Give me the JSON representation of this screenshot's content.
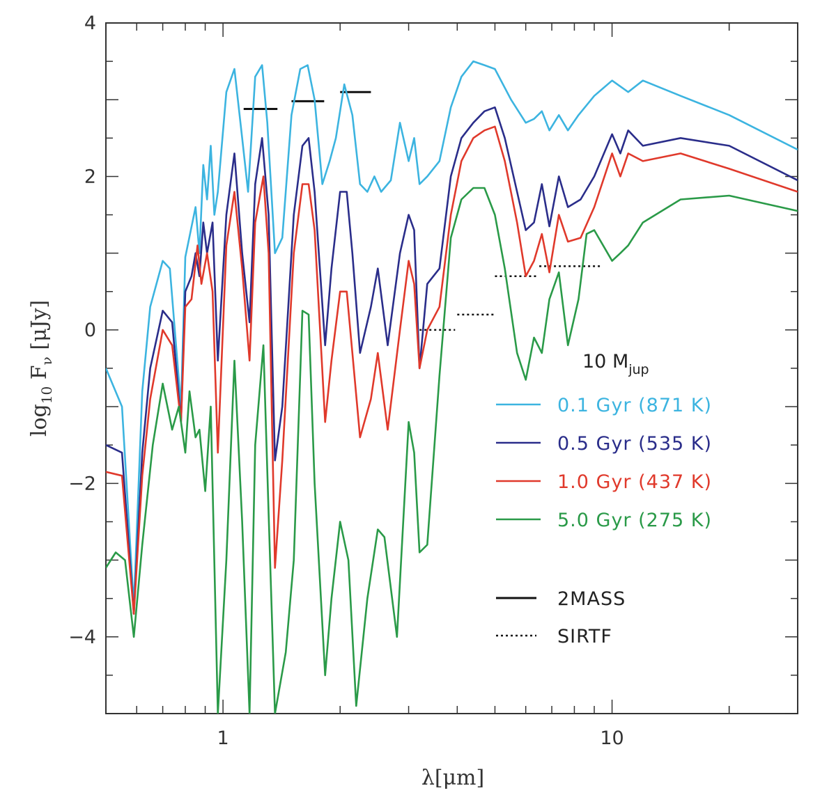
{
  "chart_data": {
    "type": "line",
    "xscale": "log",
    "xlim": [
      0.5,
      30
    ],
    "ylim": [
      -5,
      4
    ],
    "xlabel": "λ[μm]",
    "ylabel_main": "log",
    "ylabel_sub": "10",
    "ylabel_tail": " F",
    "ylabel_nu": "ν",
    "ylabel_unit": " [μJy]",
    "x_ticks": [
      {
        "value": 1,
        "label": "1"
      },
      {
        "value": 10,
        "label": "10"
      }
    ],
    "y_ticks": [
      {
        "value": -4,
        "label": "−4"
      },
      {
        "value": -2,
        "label": "−2"
      },
      {
        "value": 0,
        "label": "0"
      },
      {
        "value": 2,
        "label": "2"
      },
      {
        "value": 4,
        "label": "4"
      }
    ],
    "legend_title": "10 M",
    "legend_title_sub": "jup",
    "series": [
      {
        "name": "0.1 Gyr (871 K)",
        "color": "#3cb4e0",
        "points": [
          [
            0.5,
            -0.5
          ],
          [
            0.55,
            -1.0
          ],
          [
            0.59,
            -3.6
          ],
          [
            0.62,
            -0.8
          ],
          [
            0.65,
            0.3
          ],
          [
            0.7,
            0.9
          ],
          [
            0.73,
            0.8
          ],
          [
            0.78,
            -1.0
          ],
          [
            0.8,
            0.95
          ],
          [
            0.85,
            1.6
          ],
          [
            0.87,
            1.0
          ],
          [
            0.89,
            2.15
          ],
          [
            0.91,
            1.7
          ],
          [
            0.93,
            2.4
          ],
          [
            0.95,
            1.5
          ],
          [
            0.97,
            1.8
          ],
          [
            1.02,
            3.1
          ],
          [
            1.07,
            3.4
          ],
          [
            1.12,
            2.5
          ],
          [
            1.16,
            1.8
          ],
          [
            1.21,
            3.3
          ],
          [
            1.26,
            3.45
          ],
          [
            1.3,
            2.7
          ],
          [
            1.36,
            1.0
          ],
          [
            1.42,
            1.2
          ],
          [
            1.5,
            2.8
          ],
          [
            1.58,
            3.4
          ],
          [
            1.65,
            3.45
          ],
          [
            1.72,
            3.0
          ],
          [
            1.8,
            1.9
          ],
          [
            1.88,
            2.2
          ],
          [
            1.95,
            2.5
          ],
          [
            2.05,
            3.2
          ],
          [
            2.15,
            2.8
          ],
          [
            2.25,
            1.9
          ],
          [
            2.35,
            1.8
          ],
          [
            2.45,
            2.0
          ],
          [
            2.55,
            1.8
          ],
          [
            2.7,
            1.95
          ],
          [
            2.85,
            2.7
          ],
          [
            3.0,
            2.2
          ],
          [
            3.1,
            2.5
          ],
          [
            3.2,
            1.9
          ],
          [
            3.35,
            2.0
          ],
          [
            3.6,
            2.2
          ],
          [
            3.85,
            2.9
          ],
          [
            4.1,
            3.3
          ],
          [
            4.4,
            3.5
          ],
          [
            4.7,
            3.45
          ],
          [
            5.0,
            3.4
          ],
          [
            5.5,
            3.0
          ],
          [
            6.0,
            2.7
          ],
          [
            6.3,
            2.75
          ],
          [
            6.6,
            2.85
          ],
          [
            6.9,
            2.6
          ],
          [
            7.3,
            2.8
          ],
          [
            7.7,
            2.6
          ],
          [
            8.2,
            2.8
          ],
          [
            9.0,
            3.05
          ],
          [
            10,
            3.25
          ],
          [
            11,
            3.1
          ],
          [
            12,
            3.25
          ],
          [
            15,
            3.05
          ],
          [
            20,
            2.8
          ],
          [
            30,
            2.35
          ]
        ]
      },
      {
        "name": "0.5 Gyr (535 K)",
        "color": "#2a2d8a",
        "points": [
          [
            0.5,
            -1.5
          ],
          [
            0.55,
            -1.6
          ],
          [
            0.59,
            -3.7
          ],
          [
            0.62,
            -1.6
          ],
          [
            0.65,
            -0.5
          ],
          [
            0.7,
            0.25
          ],
          [
            0.74,
            0.1
          ],
          [
            0.78,
            -1.2
          ],
          [
            0.8,
            0.5
          ],
          [
            0.83,
            0.7
          ],
          [
            0.85,
            1.0
          ],
          [
            0.87,
            0.7
          ],
          [
            0.89,
            1.4
          ],
          [
            0.91,
            1.0
          ],
          [
            0.94,
            1.4
          ],
          [
            0.97,
            -0.4
          ],
          [
            1.02,
            1.5
          ],
          [
            1.07,
            2.3
          ],
          [
            1.12,
            1.0
          ],
          [
            1.17,
            0.1
          ],
          [
            1.21,
            1.9
          ],
          [
            1.26,
            2.5
          ],
          [
            1.31,
            1.5
          ],
          [
            1.36,
            -1.7
          ],
          [
            1.42,
            -1.0
          ],
          [
            1.52,
            1.5
          ],
          [
            1.6,
            2.4
          ],
          [
            1.66,
            2.5
          ],
          [
            1.72,
            1.8
          ],
          [
            1.83,
            -0.2
          ],
          [
            1.9,
            0.8
          ],
          [
            2.0,
            1.8
          ],
          [
            2.08,
            1.8
          ],
          [
            2.15,
            1.0
          ],
          [
            2.25,
            -0.3
          ],
          [
            2.4,
            0.3
          ],
          [
            2.5,
            0.8
          ],
          [
            2.65,
            -0.2
          ],
          [
            2.85,
            1.0
          ],
          [
            3.0,
            1.5
          ],
          [
            3.1,
            1.3
          ],
          [
            3.2,
            -0.5
          ],
          [
            3.35,
            0.6
          ],
          [
            3.6,
            0.8
          ],
          [
            3.85,
            2.0
          ],
          [
            4.1,
            2.5
          ],
          [
            4.4,
            2.7
          ],
          [
            4.7,
            2.85
          ],
          [
            5.0,
            2.9
          ],
          [
            5.3,
            2.5
          ],
          [
            5.7,
            1.8
          ],
          [
            6.0,
            1.3
          ],
          [
            6.3,
            1.4
          ],
          [
            6.6,
            1.9
          ],
          [
            6.9,
            1.35
          ],
          [
            7.3,
            2.0
          ],
          [
            7.7,
            1.6
          ],
          [
            8.3,
            1.7
          ],
          [
            9.0,
            2.0
          ],
          [
            10,
            2.55
          ],
          [
            10.5,
            2.3
          ],
          [
            11,
            2.6
          ],
          [
            12,
            2.4
          ],
          [
            15,
            2.5
          ],
          [
            20,
            2.4
          ],
          [
            30,
            1.95
          ]
        ]
      },
      {
        "name": "1.0 Gyr (437 K)",
        "color": "#e0392b",
        "points": [
          [
            0.5,
            -1.85
          ],
          [
            0.55,
            -1.9
          ],
          [
            0.59,
            -3.7
          ],
          [
            0.62,
            -1.9
          ],
          [
            0.65,
            -0.9
          ],
          [
            0.7,
            0.0
          ],
          [
            0.74,
            -0.2
          ],
          [
            0.78,
            -1.2
          ],
          [
            0.8,
            0.3
          ],
          [
            0.83,
            0.4
          ],
          [
            0.86,
            1.1
          ],
          [
            0.88,
            0.6
          ],
          [
            0.91,
            1.0
          ],
          [
            0.94,
            0.5
          ],
          [
            0.97,
            -1.6
          ],
          [
            1.02,
            1.1
          ],
          [
            1.07,
            1.8
          ],
          [
            1.12,
            0.8
          ],
          [
            1.17,
            -0.4
          ],
          [
            1.21,
            1.4
          ],
          [
            1.27,
            2.0
          ],
          [
            1.31,
            1.0
          ],
          [
            1.36,
            -3.1
          ],
          [
            1.42,
            -1.7
          ],
          [
            1.52,
            1.0
          ],
          [
            1.6,
            1.9
          ],
          [
            1.66,
            1.9
          ],
          [
            1.72,
            1.3
          ],
          [
            1.83,
            -1.2
          ],
          [
            1.9,
            -0.4
          ],
          [
            2.0,
            0.5
          ],
          [
            2.08,
            0.5
          ],
          [
            2.15,
            -0.3
          ],
          [
            2.25,
            -1.4
          ],
          [
            2.4,
            -0.9
          ],
          [
            2.5,
            -0.3
          ],
          [
            2.65,
            -1.3
          ],
          [
            2.85,
            0.0
          ],
          [
            3.0,
            0.9
          ],
          [
            3.1,
            0.6
          ],
          [
            3.2,
            -0.5
          ],
          [
            3.35,
            0.0
          ],
          [
            3.6,
            0.3
          ],
          [
            3.85,
            1.5
          ],
          [
            4.1,
            2.2
          ],
          [
            4.4,
            2.5
          ],
          [
            4.7,
            2.6
          ],
          [
            5.0,
            2.65
          ],
          [
            5.3,
            2.2
          ],
          [
            5.7,
            1.4
          ],
          [
            6.0,
            0.7
          ],
          [
            6.3,
            0.9
          ],
          [
            6.6,
            1.25
          ],
          [
            6.9,
            0.75
          ],
          [
            7.3,
            1.5
          ],
          [
            7.7,
            1.15
          ],
          [
            8.3,
            1.2
          ],
          [
            9.0,
            1.6
          ],
          [
            10,
            2.3
          ],
          [
            10.5,
            2.0
          ],
          [
            11,
            2.3
          ],
          [
            12,
            2.2
          ],
          [
            15,
            2.3
          ],
          [
            20,
            2.1
          ],
          [
            30,
            1.8
          ]
        ]
      },
      {
        "name": "5.0 Gyr (275 K)",
        "color": "#2a9a48",
        "points": [
          [
            0.5,
            -3.1
          ],
          [
            0.53,
            -2.9
          ],
          [
            0.56,
            -3.0
          ],
          [
            0.59,
            -4.0
          ],
          [
            0.62,
            -2.8
          ],
          [
            0.66,
            -1.5
          ],
          [
            0.7,
            -0.7
          ],
          [
            0.74,
            -1.3
          ],
          [
            0.77,
            -1.0
          ],
          [
            0.8,
            -1.6
          ],
          [
            0.82,
            -0.8
          ],
          [
            0.85,
            -1.4
          ],
          [
            0.87,
            -1.3
          ],
          [
            0.9,
            -2.1
          ],
          [
            0.93,
            -1.0
          ],
          [
            0.97,
            -5.0
          ],
          [
            1.02,
            -3.0
          ],
          [
            1.07,
            -0.4
          ],
          [
            1.12,
            -2.5
          ],
          [
            1.17,
            -5.0
          ],
          [
            1.21,
            -1.5
          ],
          [
            1.27,
            -0.2
          ],
          [
            1.31,
            -2.4
          ],
          [
            1.36,
            -5.0
          ],
          [
            1.45,
            -4.2
          ],
          [
            1.52,
            -3.0
          ],
          [
            1.6,
            0.25
          ],
          [
            1.66,
            0.2
          ],
          [
            1.72,
            -2.0
          ],
          [
            1.83,
            -4.5
          ],
          [
            1.9,
            -3.5
          ],
          [
            2.0,
            -2.5
          ],
          [
            2.1,
            -3.0
          ],
          [
            2.2,
            -4.9
          ],
          [
            2.35,
            -3.5
          ],
          [
            2.5,
            -2.6
          ],
          [
            2.6,
            -2.7
          ],
          [
            2.8,
            -4.0
          ],
          [
            3.0,
            -1.2
          ],
          [
            3.1,
            -1.6
          ],
          [
            3.2,
            -2.9
          ],
          [
            3.35,
            -2.8
          ],
          [
            3.6,
            -0.6
          ],
          [
            3.85,
            1.2
          ],
          [
            4.1,
            1.7
          ],
          [
            4.4,
            1.85
          ],
          [
            4.7,
            1.85
          ],
          [
            5.0,
            1.5
          ],
          [
            5.3,
            0.8
          ],
          [
            5.7,
            -0.3
          ],
          [
            6.0,
            -0.65
          ],
          [
            6.3,
            -0.1
          ],
          [
            6.6,
            -0.3
          ],
          [
            6.9,
            0.4
          ],
          [
            7.3,
            0.75
          ],
          [
            7.7,
            -0.2
          ],
          [
            8.2,
            0.4
          ],
          [
            8.6,
            1.25
          ],
          [
            9.0,
            1.3
          ],
          [
            10,
            0.9
          ],
          [
            10.5,
            1.0
          ],
          [
            11,
            1.1
          ],
          [
            12,
            1.4
          ],
          [
            15,
            1.7
          ],
          [
            20,
            1.75
          ],
          [
            30,
            1.55
          ]
        ]
      }
    ],
    "bands": [
      {
        "type": "2MASS",
        "x0": 1.13,
        "x1": 1.38,
        "y": 2.88
      },
      {
        "type": "2MASS",
        "x0": 1.5,
        "x1": 1.82,
        "y": 2.98
      },
      {
        "type": "2MASS",
        "x0": 2.0,
        "x1": 2.4,
        "y": 3.1
      },
      {
        "type": "SIRTF",
        "x0": 3.2,
        "x1": 3.95,
        "y": 0.0
      },
      {
        "type": "SIRTF",
        "x0": 4.0,
        "x1": 5.0,
        "y": 0.2
      },
      {
        "type": "SIRTF",
        "x0": 5.0,
        "x1": 6.4,
        "y": 0.7
      },
      {
        "type": "SIRTF",
        "x0": 6.5,
        "x1": 9.4,
        "y": 0.83
      }
    ],
    "instrument_legend": [
      {
        "name": "2MASS",
        "style": "solid"
      },
      {
        "name": "SIRTF",
        "style": "dotted"
      }
    ]
  }
}
